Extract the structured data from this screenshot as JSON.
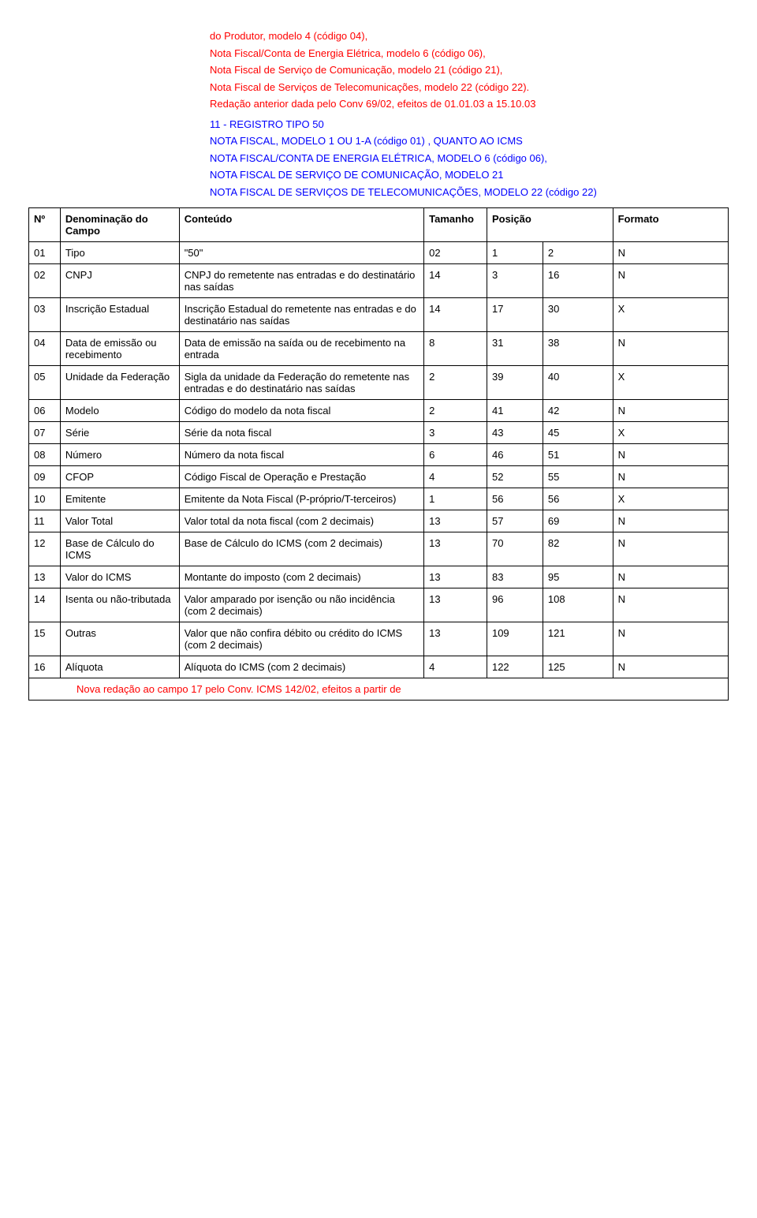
{
  "intro": {
    "lines": [
      "do Produtor, modelo 4 (código 04),",
      "Nota Fiscal/Conta de Energia Elétrica, modelo 6 (código 06),",
      "Nota Fiscal de Serviço de Comunicação, modelo 21 (código 21),",
      "Nota Fiscal de Serviços de Telecomunicações, modelo 22 (código 22).",
      "Redação anterior dada pelo Conv 69/02, efeitos de 01.01.03 a 15.10.03"
    ]
  },
  "intro11": {
    "lines": [
      "11 - REGISTRO TIPO 50",
      "NOTA FISCAL, MODELO 1 OU 1-A (código 01) , QUANTO AO ICMS",
      "NOTA FISCAL/CONTA DE ENERGIA ELÉTRICA, MODELO 6 (código 06),",
      "NOTA FISCAL DE SERVIÇO DE COMUNICAÇÃO, MODELO 21",
      "NOTA FISCAL DE SERVIÇOS DE TELECOMUNICAÇÕES, MODELO 22 (código 22)"
    ]
  },
  "table": {
    "headers": [
      "Nº",
      "Denominação do Campo",
      "Conteúdo",
      "Tamanho",
      "Posição",
      "",
      "Formato"
    ],
    "rows": [
      {
        "no": "01",
        "den": "Tipo",
        "con": "\"50\"",
        "tam": "02",
        "p1": "1",
        "p2": "2",
        "fmt": "N"
      },
      {
        "no": "02",
        "den": "CNPJ",
        "con": "CNPJ do remetente nas entradas e do destinatário nas saídas",
        "tam": "14",
        "p1": "3",
        "p2": "16",
        "fmt": "N"
      },
      {
        "no": "03",
        "den": "Inscrição Estadual",
        "con": "Inscrição Estadual do remetente nas entradas e do destinatário nas saídas",
        "tam": "14",
        "p1": "17",
        "p2": "30",
        "fmt": "X"
      },
      {
        "no": "04",
        "den": "Data de emissão ou recebimento",
        "con": "Data de emissão na saída ou de recebimento na entrada",
        "tam": "8",
        "p1": "31",
        "p2": "38",
        "fmt": "N"
      },
      {
        "no": "05",
        "den": "Unidade da Federação",
        "con": "Sigla da unidade da Federação do remetente nas entradas e do destinatário nas saídas",
        "tam": "2",
        "p1": "39",
        "p2": "40",
        "fmt": "X"
      },
      {
        "no": "06",
        "den": "Modelo",
        "con": "Código do modelo da nota fiscal",
        "tam": "2",
        "p1": "41",
        "p2": "42",
        "fmt": "N"
      },
      {
        "no": "07",
        "den": "Série",
        "con": "Série da nota fiscal",
        "tam": "3",
        "p1": "43",
        "p2": "45",
        "fmt": "X"
      },
      {
        "no": "08",
        "den": "Número",
        "con": "Número da nota fiscal",
        "tam": "6",
        "p1": "46",
        "p2": "51",
        "fmt": "N"
      },
      {
        "no": "09",
        "den": "CFOP",
        "con": "Código Fiscal de Operação e Prestação",
        "tam": "4",
        "p1": "52",
        "p2": "55",
        "fmt": "N"
      },
      {
        "no": "10",
        "den": "Emitente",
        "con": "Emitente da Nota Fiscal (P-próprio/T-terceiros)",
        "tam": "1",
        "p1": "56",
        "p2": "56",
        "fmt": "X"
      },
      {
        "no": "11",
        "den": "Valor Total",
        "con": "Valor total da nota fiscal (com 2 decimais)",
        "tam": "13",
        "p1": "57",
        "p2": "69",
        "fmt": "N"
      },
      {
        "no": "12",
        "den": "Base de Cálculo do ICMS",
        "con": "Base de Cálculo do ICMS (com 2 decimais)",
        "tam": "13",
        "p1": "70",
        "p2": "82",
        "fmt": "N"
      },
      {
        "no": "13",
        "den": "Valor do ICMS",
        "con": "Montante do imposto (com 2 decimais)",
        "tam": "13",
        "p1": "83",
        "p2": "95",
        "fmt": "N"
      },
      {
        "no": "14",
        "den": "Isenta ou não-tributada",
        "con": "Valor amparado por isenção ou não incidência (com 2 decimais)",
        "tam": "13",
        "p1": "96",
        "p2": "108",
        "fmt": "N"
      },
      {
        "no": "15",
        "den": "Outras",
        "con": "Valor que não confira débito ou crédito do ICMS (com 2 decimais)",
        "tam": "13",
        "p1": "109",
        "p2": "121",
        "fmt": "N"
      },
      {
        "no": "16",
        "den": "Alíquota",
        "con": "Alíquota do ICMS (com 2 decimais)",
        "tam": "4",
        "p1": "122",
        "p2": "125",
        "fmt": "N"
      }
    ],
    "footer": "Nova redação ao campo 17 pelo Conv. ICMS 142/02, efeitos a partir de"
  }
}
